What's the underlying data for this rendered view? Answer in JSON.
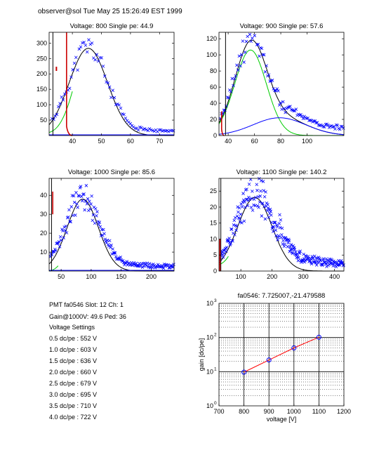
{
  "header": "observer@sol  Tue May 25 15:26:49 EST 1999",
  "panels": [
    {
      "title": "Voltage: 800 Single pe: 44.9",
      "xticks": [
        "40",
        "50",
        "60",
        "70"
      ],
      "yticks": [
        "50",
        "100",
        "150",
        "200",
        "250",
        "300"
      ]
    },
    {
      "title": "Voltage: 900 Single pe: 57.6",
      "xticks": [
        "40",
        "60",
        "80",
        "100"
      ],
      "yticks": [
        "0",
        "20",
        "40",
        "60",
        "80",
        "100",
        "120"
      ]
    },
    {
      "title": "Voltage: 1000 Single pe: 85.6",
      "xticks": [
        "50",
        "100",
        "150",
        "200"
      ],
      "yticks": [
        "10",
        "20",
        "30",
        "40"
      ]
    },
    {
      "title": "Voltage: 1100 Single pe: 140.2",
      "xticks": [
        "100",
        "200",
        "300",
        "400"
      ],
      "yticks": [
        "0",
        "5",
        "10",
        "15",
        "20",
        "25"
      ]
    }
  ],
  "info": {
    "line1": "PMT fa0546 Slot: 12 Ch: 1",
    "line2": "Gain@1000V: 49.6 Ped: 36",
    "heading": "Voltage Settings",
    "settings": [
      "0.5 dc/pe : 552 V",
      "1.0 dc/pe : 603 V",
      "1.5 dc/pe : 636 V",
      "2.0 dc/pe : 660 V",
      "2.5 dc/pe : 679 V",
      "3.0 dc/pe : 695 V",
      "3.5 dc/pe : 710 V",
      "4.0 dc/pe : 722 V"
    ]
  },
  "chart_data": {
    "type": "scatter",
    "title": "fa0546: 7.725007,-21.479588",
    "xlabel": "voltage [V]",
    "ylabel": "gain [dc/pe]",
    "xlim": [
      700,
      1200
    ],
    "ylim": [
      1,
      1000
    ],
    "yscale": "log",
    "grid": true,
    "xticks": [
      "700",
      "800",
      "900",
      "1000",
      "1100",
      "1200"
    ],
    "yticks": [
      "10",
      "10",
      "10",
      "10"
    ],
    "ytick_exponents": [
      "0",
      "1",
      "2",
      "3"
    ],
    "x": [
      800,
      900,
      1000,
      1100
    ],
    "y": [
      9.7,
      22.0,
      49.6,
      102.0
    ],
    "marker_color": "#0000ff",
    "fit_color": "#ff0000"
  }
}
